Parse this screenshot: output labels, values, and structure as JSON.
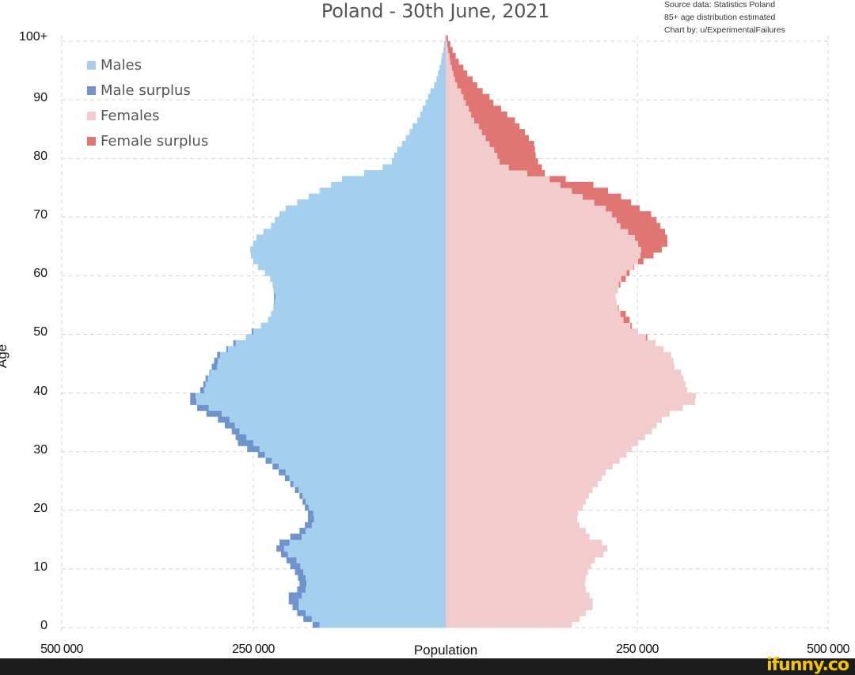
{
  "chart": {
    "title": "Poland - 30th June, 2021",
    "source_lines": [
      "Source data: Statistics Poland",
      "85+ age distribution estimated",
      "Chart by: u/ExperimentalFailures"
    ],
    "xlabel": "Population",
    "ylabel": "Age",
    "x_ticks": [
      "500 000",
      "250 000",
      "250 000",
      "500 000"
    ],
    "y_ticks": [
      "0",
      "10",
      "20",
      "30",
      "40",
      "50",
      "60",
      "70",
      "80",
      "90",
      "100+"
    ],
    "legend": [
      {
        "label": "Males",
        "color": "#a5cfee"
      },
      {
        "label": "Male surplus",
        "color": "#6f93cd"
      },
      {
        "label": "Females",
        "color": "#f2cbcd"
      },
      {
        "label": "Female surplus",
        "color": "#e07674"
      }
    ]
  },
  "footer": {
    "watermark": "ifunny.co"
  },
  "chart_data": {
    "type": "bar",
    "subtype": "population-pyramid",
    "title": "Poland - 30th June, 2021",
    "xlabel": "Population",
    "ylabel": "Age",
    "xlim": [
      -500000,
      500000
    ],
    "ylim": [
      0,
      100
    ],
    "grid": true,
    "legend_position": "upper-left",
    "annotations": [
      "Source data: Statistics Poland",
      "85+ age distribution estimated",
      "Chart by: u/ExperimentalFailures"
    ],
    "categories": [
      0,
      1,
      2,
      3,
      4,
      5,
      6,
      7,
      8,
      9,
      10,
      11,
      12,
      13,
      14,
      15,
      16,
      17,
      18,
      19,
      20,
      21,
      22,
      23,
      24,
      25,
      26,
      27,
      28,
      29,
      30,
      31,
      32,
      33,
      34,
      35,
      36,
      37,
      38,
      39,
      40,
      41,
      42,
      43,
      44,
      45,
      46,
      47,
      48,
      49,
      50,
      51,
      52,
      53,
      54,
      55,
      56,
      57,
      58,
      59,
      60,
      61,
      62,
      63,
      64,
      65,
      66,
      67,
      68,
      69,
      70,
      71,
      72,
      73,
      74,
      75,
      76,
      77,
      78,
      79,
      80,
      81,
      82,
      83,
      84,
      85,
      86,
      87,
      88,
      89,
      90,
      91,
      92,
      93,
      94,
      95,
      96,
      97,
      98,
      99,
      "100+"
    ],
    "series": [
      {
        "name": "Males",
        "values": [
          173000,
          185000,
          193000,
          199000,
          204000,
          204000,
          193000,
          190000,
          192000,
          196000,
          202000,
          207000,
          214000,
          220000,
          216000,
          202000,
          190000,
          183000,
          179000,
          179000,
          183000,
          186000,
          190000,
          196000,
          202000,
          209000,
          217000,
          225000,
          234000,
          244000,
          258000,
          270000,
          273000,
          278000,
          287000,
          296000,
          311000,
          323000,
          332000,
          332000,
          319000,
          315000,
          312000,
          307000,
          304000,
          301000,
          297000,
          285000,
          276000,
          260000,
          252000,
          240000,
          231000,
          227000,
          224000,
          223000,
          223000,
          224000,
          225000,
          228000,
          235000,
          244000,
          250000,
          253000,
          254000,
          250000,
          246000,
          237000,
          227000,
          222000,
          216000,
          208000,
          193000,
          178000,
          164000,
          149000,
          135000,
          106000,
          82000,
          70000,
          67000,
          63000,
          57000,
          52000,
          47000,
          43000,
          37000,
          33000,
          30000,
          26000,
          23000,
          20000,
          15000,
          12000,
          10000,
          8000,
          6000,
          5000,
          3000,
          2000,
          1000
        ]
      },
      {
        "name": "Females",
        "values": [
          164000,
          174000,
          182000,
          191000,
          191000,
          187000,
          182000,
          181000,
          182000,
          185000,
          189000,
          194000,
          205000,
          210000,
          203000,
          187000,
          182000,
          174000,
          171000,
          172000,
          178000,
          182000,
          186000,
          191000,
          198000,
          203000,
          208000,
          217000,
          226000,
          235000,
          242000,
          250000,
          259000,
          268000,
          274000,
          281000,
          291000,
          308000,
          324000,
          325000,
          314000,
          312000,
          309000,
          306000,
          297000,
          296000,
          293000,
          283000,
          273000,
          262000,
          250000,
          242000,
          239000,
          234000,
          225000,
          222000,
          221000,
          224000,
          227000,
          234000,
          239000,
          245000,
          257000,
          270000,
          281000,
          288000,
          288000,
          285000,
          279000,
          274000,
          267000,
          252000,
          241000,
          228000,
          211000,
          192000,
          156000,
          129000,
          125000,
          120000,
          117000,
          116000,
          115000,
          108000,
          103000,
          96000,
          90000,
          80000,
          72000,
          62000,
          57000,
          48000,
          41000,
          35000,
          28000,
          23000,
          17000,
          13000,
          9000,
          6000,
          3000
        ]
      }
    ],
    "derived_series_note": "Male surplus = max(Males - Females, 0); Female surplus = max(Females - Males, 0)"
  }
}
